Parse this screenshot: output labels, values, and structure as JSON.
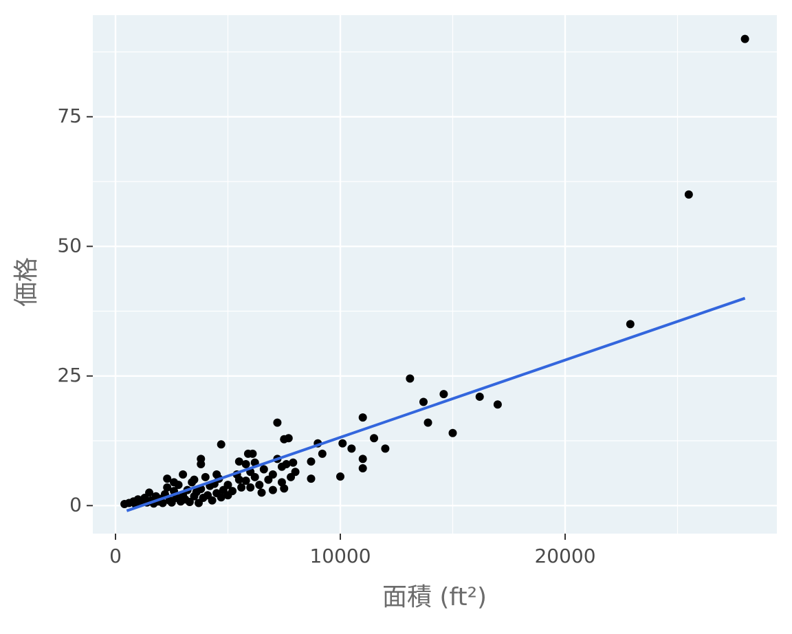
{
  "chart_data": {
    "type": "scatter",
    "x_label": "面積 (ft²)",
    "y_label": "価格",
    "x": [
      28000,
      25500,
      22900,
      13100,
      13700,
      14600,
      16200,
      17000,
      13900,
      15000,
      11000,
      10100,
      10500,
      11500,
      12000,
      11000,
      11000,
      10000,
      9000,
      9200,
      8700,
      8700,
      7200,
      7500,
      7700,
      4700,
      3800,
      3800,
      6100,
      5900,
      5500,
      7900,
      8000,
      7400,
      7500,
      7000,
      6500,
      6000,
      5000,
      5500,
      3000,
      2300,
      400,
      600,
      800,
      900,
      1000,
      1100,
      1200,
      1300,
      1400,
      1500,
      1600,
      1700,
      1800,
      1900,
      2000,
      2100,
      2200,
      2300,
      2400,
      2500,
      2600,
      2700,
      2800,
      2900,
      3000,
      3100,
      3200,
      3300,
      3400,
      3500,
      3600,
      3700,
      3800,
      3900,
      4000,
      4100,
      4200,
      4300,
      4400,
      4500,
      4600,
      4700,
      4800,
      5000,
      5200,
      5400,
      5600,
      5800,
      6000,
      6200,
      6400,
      6600,
      6800,
      7000,
      7200,
      7400,
      7600,
      7800,
      6200,
      5800,
      3500,
      2600,
      4500
    ],
    "values": [
      90,
      60,
      35,
      24.5,
      20,
      21.5,
      21,
      19.5,
      16,
      14,
      17,
      12,
      11,
      13,
      11,
      9,
      7.2,
      5.6,
      12,
      10,
      5.2,
      8.5,
      16,
      12.8,
      13,
      11.8,
      9,
      8,
      10,
      10,
      8.5,
      8.3,
      6.5,
      7.5,
      3.3,
      3,
      2.5,
      3.5,
      2,
      5,
      6,
      5.2,
      0.3,
      0.5,
      0.8,
      0.2,
      1.2,
      0.5,
      0.9,
      1.5,
      0.6,
      2.5,
      1.0,
      0.4,
      1.8,
      0.8,
      1.3,
      0.5,
      2.2,
      3.5,
      1.0,
      0.6,
      2.8,
      1.5,
      4.0,
      0.8,
      2.0,
      1.2,
      3.0,
      0.7,
      4.5,
      1.8,
      2.6,
      0.5,
      3.2,
      1.5,
      5.5,
      2.0,
      3.8,
      1.0,
      4.2,
      2.4,
      5.2,
      1.6,
      3.0,
      4.0,
      2.8,
      6.0,
      3.5,
      4.8,
      6.5,
      5.5,
      4.0,
      7.0,
      5.0,
      6.0,
      9.0,
      4.5,
      8.0,
      5.5,
      8.3,
      8.0,
      5.0,
      4.5,
      6.0
    ],
    "color": "#000000",
    "trend_line": {
      "x": [
        500,
        28000
      ],
      "values": [
        -1.0,
        40.0
      ],
      "color": "#3366dd"
    },
    "xlim": [
      -1009,
      29419
    ],
    "ylim": [
      -5.4,
      94.6
    ],
    "xticks": [
      0,
      10000,
      20000
    ],
    "yticks": [
      0,
      25,
      50,
      75
    ],
    "x_minor_grid": [
      5000,
      15000,
      25000
    ],
    "y_minor_grid": [
      12.5,
      37.5,
      62.5,
      87.5
    ],
    "grid": true,
    "panel_color": "#eaf2f6"
  }
}
